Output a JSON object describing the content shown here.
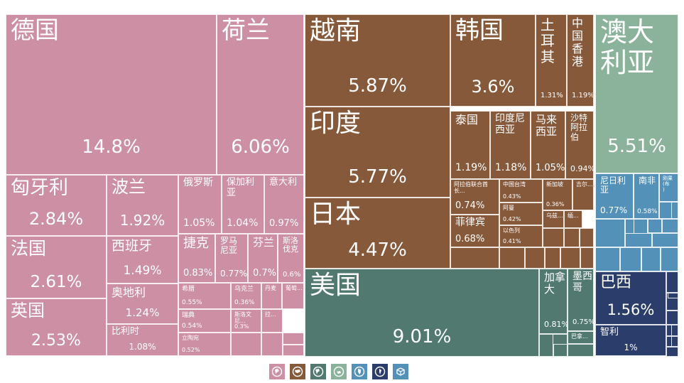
{
  "chart_data": {
    "type": "treemap",
    "colors": {
      "europe": "#cc8fa3",
      "asia": "#87593b",
      "north_america": "#52796f",
      "oceania": "#8bb29a",
      "africa": "#5491b8",
      "south_america": "#2a3d6b"
    },
    "tiles": [
      {
        "name": "德国",
        "value": "14.8%",
        "region": "europe"
      },
      {
        "name": "荷兰",
        "value": "6.06%",
        "region": "europe"
      },
      {
        "name": "匈牙利",
        "value": "2.84%",
        "region": "europe"
      },
      {
        "name": "波兰",
        "value": "1.92%",
        "region": "europe"
      },
      {
        "name": "俄罗斯",
        "value": "1.05%",
        "region": "europe"
      },
      {
        "name": "保加利\n亚",
        "value": "1.04%",
        "region": "europe"
      },
      {
        "name": "意大利",
        "value": "0.97%",
        "region": "europe"
      },
      {
        "name": "法国",
        "value": "2.61%",
        "region": "europe"
      },
      {
        "name": "西班牙",
        "value": "1.49%",
        "region": "europe"
      },
      {
        "name": "捷克",
        "value": "0.83%",
        "region": "europe"
      },
      {
        "name": "罗马\n尼亚",
        "value": "0.77%",
        "region": "europe"
      },
      {
        "name": "芬兰",
        "value": "0.7%",
        "region": "europe"
      },
      {
        "name": "斯洛\n伐克",
        "value": "0.6%",
        "region": "europe"
      },
      {
        "name": "英国",
        "value": "2.53%",
        "region": "europe"
      },
      {
        "name": "奥地利",
        "value": "1.24%",
        "region": "europe"
      },
      {
        "name": "希腊",
        "value": "0.55%",
        "region": "europe"
      },
      {
        "name": "乌克兰",
        "value": "0.36%",
        "region": "europe"
      },
      {
        "name": "丹麦",
        "value": "",
        "region": "europe"
      },
      {
        "name": "葡萄...",
        "value": "",
        "region": "europe"
      },
      {
        "name": "瑞典",
        "value": "0.54%",
        "region": "europe"
      },
      {
        "name": "斯洛文尼...",
        "value": "0.3%",
        "region": "europe"
      },
      {
        "name": "拉...",
        "value": "",
        "region": "europe"
      },
      {
        "name": "比利时",
        "value": "1.08%",
        "region": "europe"
      },
      {
        "name": "立陶宛",
        "value": "0.52%",
        "region": "europe"
      },
      {
        "name": "越南",
        "value": "5.87%",
        "region": "asia"
      },
      {
        "name": "韩国",
        "value": "3.6%",
        "region": "asia"
      },
      {
        "name": "土\n耳\n其",
        "value": "1.31%",
        "region": "asia"
      },
      {
        "name": "中\n国\n香\n港",
        "value": "1.19%",
        "region": "asia"
      },
      {
        "name": "印度",
        "value": "5.77%",
        "region": "asia"
      },
      {
        "name": "泰国",
        "value": "1.19%",
        "region": "asia"
      },
      {
        "name": "印度尼\n西亚",
        "value": "1.18%",
        "region": "asia"
      },
      {
        "name": "马来\n西亚",
        "value": "1.05%",
        "region": "asia"
      },
      {
        "name": "沙特\n阿拉\n伯",
        "value": "0.94%",
        "region": "asia"
      },
      {
        "name": "阿拉伯联合酋长...",
        "value": "0.74%",
        "region": "asia"
      },
      {
        "name": "中国台湾",
        "value": "0.43%",
        "region": "asia"
      },
      {
        "name": "新加坡",
        "value": "0.36%",
        "region": "asia"
      },
      {
        "name": "吉尔...",
        "value": "",
        "region": "asia"
      },
      {
        "name": "阿曼",
        "value": "0.42%",
        "region": "asia"
      },
      {
        "name": "乌兹...",
        "value": "",
        "region": "asia"
      },
      {
        "name": "缅...",
        "value": "",
        "region": "asia"
      },
      {
        "name": "日本",
        "value": "4.47%",
        "region": "asia"
      },
      {
        "name": "菲律宾",
        "value": "0.68%",
        "region": "asia"
      },
      {
        "name": "以色列",
        "value": "0.41%",
        "region": "asia"
      },
      {
        "name": "美国",
        "value": "9.01%",
        "region": "north_america"
      },
      {
        "name": "加拿\n大",
        "value": "0.81%",
        "region": "north_america"
      },
      {
        "name": "墨西\n哥",
        "value": "0.75%",
        "region": "north_america"
      },
      {
        "name": "巴拿...",
        "value": "",
        "region": "north_america"
      },
      {
        "name": "澳大\n利亚",
        "value": "5.51%",
        "region": "oceania"
      },
      {
        "name": "尼日利\n亚",
        "value": "0.77%",
        "region": "africa"
      },
      {
        "name": "南非",
        "value": "0.58%",
        "region": "africa"
      },
      {
        "name": "刚果\n(布\n)",
        "value": "",
        "region": "africa"
      },
      {
        "name": "巴西",
        "value": "1.56%",
        "region": "south_america"
      },
      {
        "name": "智利",
        "value": "1%",
        "region": "south_america"
      }
    ],
    "filler_tiles": [
      {
        "region": "asia",
        "count": 9
      },
      {
        "region": "north_america",
        "count": 4
      },
      {
        "region": "africa",
        "count": 14
      },
      {
        "region": "south_america",
        "count": 10
      },
      {
        "region": "europe",
        "count": 4
      }
    ]
  },
  "legend": [
    {
      "icon": "europe-icon",
      "color": "#cc8fa3"
    },
    {
      "icon": "asia-icon",
      "color": "#87593b"
    },
    {
      "icon": "north-america-icon",
      "color": "#52796f"
    },
    {
      "icon": "oceania-icon",
      "color": "#8bb29a"
    },
    {
      "icon": "africa-icon",
      "color": "#5491b8"
    },
    {
      "icon": "south-america-icon",
      "color": "#2a3d6b"
    },
    {
      "icon": "other-icon",
      "color": "#5491b8"
    }
  ]
}
